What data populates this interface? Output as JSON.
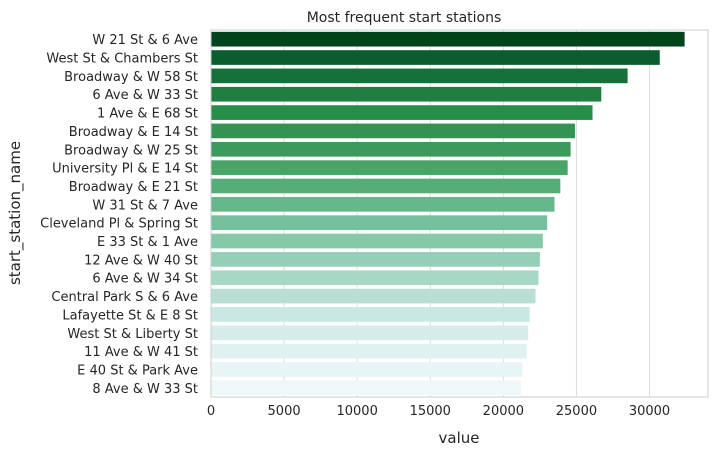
{
  "chart_data": {
    "type": "bar",
    "orientation": "horizontal",
    "title": "Most frequent start stations",
    "xlabel": "value",
    "ylabel": "start_station_name",
    "xlim": [
      0,
      34000
    ],
    "xticks": [
      0,
      5000,
      10000,
      15000,
      20000,
      25000,
      30000
    ],
    "grid": true,
    "categories": [
      "W 21 St & 6 Ave",
      "West St & Chambers St",
      "Broadway & W 58 St",
      "6 Ave & W 33 St",
      "1 Ave & E 68 St",
      "Broadway & E 14 St",
      "Broadway & W 25 St",
      "University Pl & E 14 St",
      "Broadway & E 21 St",
      "W 31 St & 7 Ave",
      "Cleveland Pl & Spring St",
      "E 33 St & 1 Ave",
      "12 Ave & W 40 St",
      "6 Ave & W 34 St",
      "Central Park S & 6 Ave",
      "Lafayette St & E 8 St",
      "West St & Liberty St",
      "11 Ave & W 41 St",
      "E 40 St & Park Ave",
      "8 Ave & W 33 St"
    ],
    "values": [
      32400,
      30700,
      28500,
      26700,
      26100,
      24900,
      24600,
      24400,
      23900,
      23500,
      23000,
      22700,
      22500,
      22400,
      22200,
      21800,
      21700,
      21600,
      21300,
      21200
    ],
    "colors": [
      "#00441b",
      "#0b5d2d",
      "#15703a",
      "#1f7f40",
      "#288d47",
      "#339353",
      "#3d9a5d",
      "#49a467",
      "#56ad77",
      "#66b88a",
      "#74c09c",
      "#85c9a8",
      "#95cfb7",
      "#a6d8c5",
      "#b9dfd4",
      "#c8e8e1",
      "#d5ece9",
      "#e0f1f1",
      "#e8f5f6",
      "#eef8f9"
    ]
  }
}
